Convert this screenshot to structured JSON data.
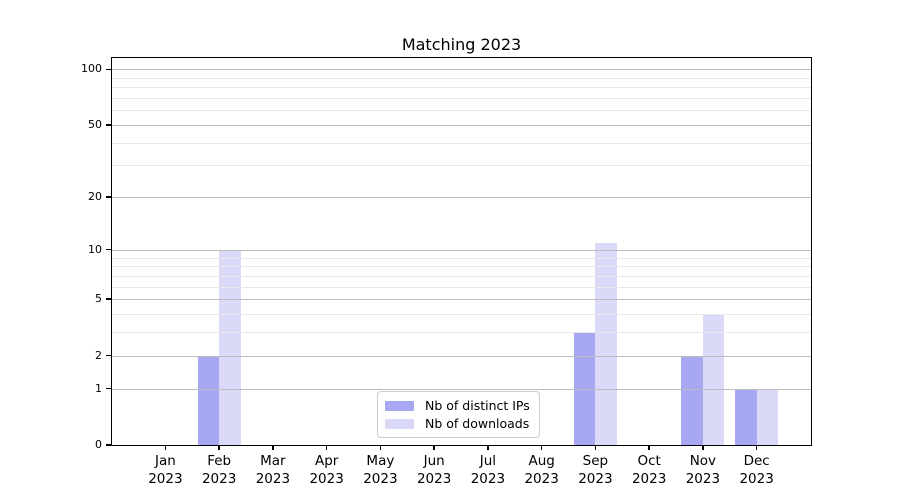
{
  "chart_data": {
    "type": "bar",
    "title": "Matching 2023",
    "categories": [
      "Jan",
      "Feb",
      "Mar",
      "Apr",
      "May",
      "Jun",
      "Jul",
      "Aug",
      "Sep",
      "Oct",
      "Nov",
      "Dec"
    ],
    "x_tick_year": "2023",
    "series": [
      {
        "name": "Nb of distinct IPs",
        "slug": "distinct-ips",
        "color": "#a8a8f2",
        "values": [
          0,
          2,
          0,
          0,
          0,
          0,
          0,
          0,
          3,
          0,
          2,
          1
        ]
      },
      {
        "name": "Nb of downloads",
        "slug": "downloads",
        "color": "#dadaf8",
        "values": [
          0,
          10,
          0,
          0,
          0,
          0,
          0,
          0,
          11,
          0,
          4,
          1
        ]
      }
    ],
    "y_axis": {
      "scale": "log1p",
      "major_ticks": [
        0,
        1,
        2,
        5,
        10,
        20,
        50,
        100
      ],
      "minor_gridlines": [
        3,
        4,
        6,
        7,
        8,
        9,
        30,
        40,
        60,
        70,
        80,
        90
      ],
      "ylim": [
        0,
        115
      ]
    },
    "xlabel": "",
    "ylabel": "",
    "grid": true,
    "legend": {
      "location": "lower center"
    },
    "colors": {
      "major_grid": "#bcbcbc",
      "minor_grid": "#e8e8e8",
      "spine": "#000000",
      "text": "#000000",
      "background": "#ffffff"
    }
  }
}
